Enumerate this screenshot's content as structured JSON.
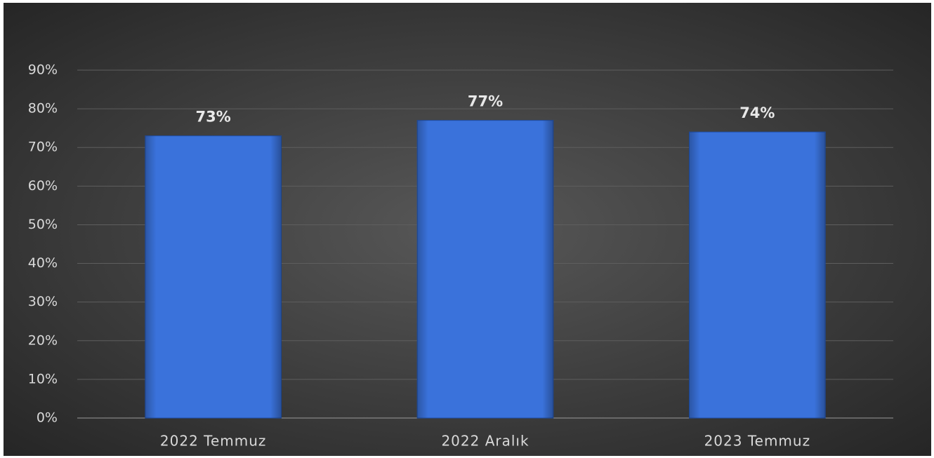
{
  "chart_data": {
    "type": "bar",
    "categories": [
      "2022 Temmuz",
      "2022 Aralık",
      "2023 Temmuz"
    ],
    "values": [
      73,
      77,
      74
    ],
    "value_labels": [
      "73%",
      "77%",
      "74%"
    ],
    "color": "#3a72db",
    "ylim": [
      0,
      90
    ],
    "yticks": [
      {
        "value": 0,
        "label": "0%"
      },
      {
        "value": 10,
        "label": "10%"
      },
      {
        "value": 20,
        "label": "20%"
      },
      {
        "value": 30,
        "label": "30%"
      },
      {
        "value": 40,
        "label": "40%"
      },
      {
        "value": 50,
        "label": "50%"
      },
      {
        "value": 60,
        "label": "60%"
      },
      {
        "value": 70,
        "label": "70%"
      },
      {
        "value": 80,
        "label": "80%"
      },
      {
        "value": 90,
        "label": "90%"
      }
    ],
    "grid": true
  }
}
